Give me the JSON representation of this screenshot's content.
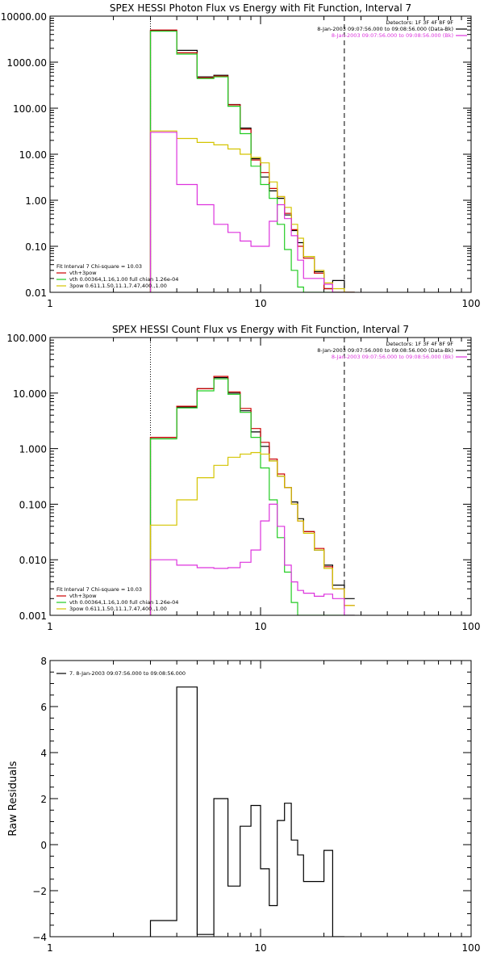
{
  "colors": {
    "black": "#000000",
    "red": "#cc0000",
    "green": "#22cc22",
    "yellow": "#d4c400",
    "magenta": "#dd33dd"
  },
  "chart_data": [
    {
      "type": "line",
      "title": "SPEX HESSI Photon Flux vs Energy with Fit Function, Interval 7",
      "xscale": "log",
      "yscale": "log",
      "xlim": [
        1,
        100
      ],
      "ylim": [
        0.01,
        10000
      ],
      "xticks": [
        {
          "v": 1,
          "label": "1"
        },
        {
          "v": 10,
          "label": "10"
        },
        {
          "v": 100,
          "label": "100"
        }
      ],
      "yticks": [
        {
          "v": 0.01,
          "label": "0.01"
        },
        {
          "v": 0.1,
          "label": "0.10"
        },
        {
          "v": 1,
          "label": "1.00"
        },
        {
          "v": 10,
          "label": "10.00"
        },
        {
          "v": 100,
          "label": "100.00"
        },
        {
          "v": 1000,
          "label": "1000.00"
        },
        {
          "v": 10000,
          "label": "10000.00"
        }
      ],
      "vlines": [
        {
          "x": 3,
          "style": "dotted"
        },
        {
          "x": 25,
          "style": "dashed"
        }
      ],
      "header": [
        "Detectors: 1F 3F 4F 8F 9F",
        "8-Jan-2003 09:07:56.000 to 09:08:56.000 (Data-Bk)",
        "8-Jan-2003 09:07:56.000 to 09:08:56.000 (Bk)"
      ],
      "header_colors": [
        "#000000",
        "#000000",
        "#dd33dd"
      ],
      "legend_title": "Fit Interval 7   Chi-square = 10.03",
      "legend": [
        {
          "text": "vth+3pow",
          "color": "#cc0000"
        },
        {
          "text": "vth 0.00364,1.16,1.00  full chian 1.26e-04",
          "color": "#22cc22"
        },
        {
          "text": "3pow 0.611,1.50,11.1,7.47,400.,1.00",
          "color": "#d4c400"
        }
      ],
      "edges": [
        3,
        4,
        5,
        6,
        7,
        8,
        9,
        10,
        11,
        12,
        13,
        14,
        15,
        16,
        18,
        20,
        22,
        25,
        28
      ],
      "series": [
        {
          "name": "Data-Bk",
          "color": "#000000",
          "values": [
            4900,
            1800,
            480,
            520,
            120,
            37,
            8,
            3.2,
            1.6,
            1.1,
            0.48,
            0.22,
            0.12,
            0.06,
            0.028,
            0.012,
            0.018,
            0.009
          ]
        },
        {
          "name": "vth+3pow",
          "color": "#cc0000",
          "values": [
            5000,
            1600,
            460,
            500,
            118,
            35,
            7.5,
            4,
            1.8,
            1.2,
            0.52,
            0.23,
            0.1,
            0.055,
            0.026,
            0.012,
            0.009,
            0.008
          ]
        },
        {
          "name": "vth",
          "color": "#22cc22",
          "values": [
            4700,
            1500,
            440,
            480,
            110,
            28,
            5.5,
            2.2,
            1.1,
            0.3,
            0.085,
            0.03,
            0.013,
            0.008,
            0.008,
            0.008,
            0.008,
            0.008
          ]
        },
        {
          "name": "3pow",
          "color": "#d4c400",
          "values": [
            32,
            22,
            18,
            16,
            13,
            10,
            8.5,
            6.5,
            2.5,
            1.2,
            0.7,
            0.3,
            0.15,
            0.06,
            0.03,
            0.016,
            0.012,
            0.009
          ]
        },
        {
          "name": "Bk",
          "color": "#dd33dd",
          "values": [
            30,
            2.2,
            0.8,
            0.3,
            0.2,
            0.13,
            0.1,
            0.1,
            0.35,
            0.8,
            0.4,
            0.17,
            0.05,
            0.02,
            0.02,
            0.015,
            0.01,
            0.01
          ]
        }
      ]
    },
    {
      "type": "line",
      "title": "SPEX HESSI Count Flux vs Energy with Fit Function, Interval 7",
      "xscale": "log",
      "yscale": "log",
      "xlim": [
        1,
        100
      ],
      "ylim": [
        0.001,
        100
      ],
      "xticks": [
        {
          "v": 1,
          "label": "1"
        },
        {
          "v": 10,
          "label": "10"
        },
        {
          "v": 100,
          "label": "100"
        }
      ],
      "yticks": [
        {
          "v": 0.001,
          "label": "0.001"
        },
        {
          "v": 0.01,
          "label": "0.010"
        },
        {
          "v": 0.1,
          "label": "0.100"
        },
        {
          "v": 1,
          "label": "1.000"
        },
        {
          "v": 10,
          "label": "10.000"
        },
        {
          "v": 100,
          "label": "100.000"
        }
      ],
      "vlines": [
        {
          "x": 3,
          "style": "dotted"
        },
        {
          "x": 25,
          "style": "dashed"
        }
      ],
      "header": [
        "Detectors: 1F 3F 4F 8F 9F",
        "8-Jan-2003 09:07:56.000 to 09:08:56.000 (Data-Bk)",
        "8-Jan-2003 09:07:56.000 to 09:08:56.000 (Bk)"
      ],
      "header_colors": [
        "#000000",
        "#000000",
        "#dd33dd"
      ],
      "legend_title": "Fit Interval 7   Chi-square = 10.03",
      "legend": [
        {
          "text": "vth+3pow",
          "color": "#cc0000"
        },
        {
          "text": "vth 0.00364,1.16,1.00  full chian 1.26e-04",
          "color": "#22cc22"
        },
        {
          "text": "3pow 0.611,1.50,11.1,7.47,400.,1.00",
          "color": "#d4c400"
        }
      ],
      "edges": [
        3,
        4,
        5,
        6,
        7,
        8,
        9,
        10,
        11,
        12,
        13,
        14,
        15,
        16,
        18,
        20,
        22,
        25,
        28
      ],
      "series": [
        {
          "name": "Data-Bk",
          "color": "#000000",
          "values": [
            1.6,
            5.6,
            12,
            19,
            10,
            4.8,
            2,
            1.1,
            0.6,
            0.32,
            0.2,
            0.11,
            0.055,
            0.032,
            0.015,
            0.008,
            0.0035,
            0.002
          ]
        },
        {
          "name": "vth+3pow",
          "color": "#cc0000",
          "values": [
            1.6,
            5.8,
            12,
            20,
            10.5,
            5.3,
            2.3,
            1.3,
            0.65,
            0.35,
            0.2,
            0.1,
            0.05,
            0.032,
            0.016,
            0.0075,
            0.003,
            0.0015
          ]
        },
        {
          "name": "vth",
          "color": "#22cc22",
          "values": [
            1.5,
            5.4,
            11,
            18,
            9.5,
            4.5,
            1.6,
            0.45,
            0.12,
            0.025,
            0.006,
            0.0017,
            0.001,
            0.001,
            0.001,
            0.001,
            0.001,
            0.001
          ]
        },
        {
          "name": "3pow",
          "color": "#d4c400",
          "values": [
            0.042,
            0.12,
            0.3,
            0.5,
            0.7,
            0.8,
            0.85,
            0.8,
            0.6,
            0.32,
            0.2,
            0.1,
            0.05,
            0.03,
            0.015,
            0.007,
            0.003,
            0.0015
          ]
        },
        {
          "name": "Bk",
          "color": "#dd33dd",
          "values": [
            0.01,
            0.008,
            0.0072,
            0.007,
            0.0072,
            0.009,
            0.015,
            0.05,
            0.1,
            0.04,
            0.008,
            0.004,
            0.0028,
            0.0025,
            0.0022,
            0.0024,
            0.002,
            0.001
          ]
        }
      ]
    },
    {
      "type": "line",
      "title": "",
      "ylabel": "Raw Residuals",
      "xscale": "log",
      "yscale": "linear",
      "xlim": [
        1,
        100
      ],
      "ylim": [
        -4,
        8
      ],
      "xticks": [
        {
          "v": 1,
          "label": "1"
        },
        {
          "v": 10,
          "label": "10"
        },
        {
          "v": 100,
          "label": "100"
        }
      ],
      "yticks": [
        {
          "v": -4,
          "label": "−4"
        },
        {
          "v": -2,
          "label": "−2"
        },
        {
          "v": 0,
          "label": "0"
        },
        {
          "v": 2,
          "label": "2"
        },
        {
          "v": 4,
          "label": "4"
        },
        {
          "v": 6,
          "label": "6"
        },
        {
          "v": 8,
          "label": "8"
        }
      ],
      "legend": [
        {
          "text": "7.  8-Jan-2003 09:07:56.000 to 09:08:56.000",
          "color": "#000000"
        }
      ],
      "edges": [
        3,
        4,
        5,
        6,
        7,
        8,
        9,
        10,
        11,
        12,
        13,
        14,
        15,
        16,
        18,
        20,
        22,
        25
      ],
      "series": [
        {
          "name": "",
          "color": "#000000",
          "values": [
            -3.3,
            6.85,
            -3.9,
            2.0,
            -1.8,
            0.8,
            1.7,
            -1.05,
            -2.65,
            1.05,
            1.8,
            0.2,
            -0.45,
            -1.6,
            -1.6,
            -0.25,
            -4.0
          ]
        }
      ]
    }
  ]
}
